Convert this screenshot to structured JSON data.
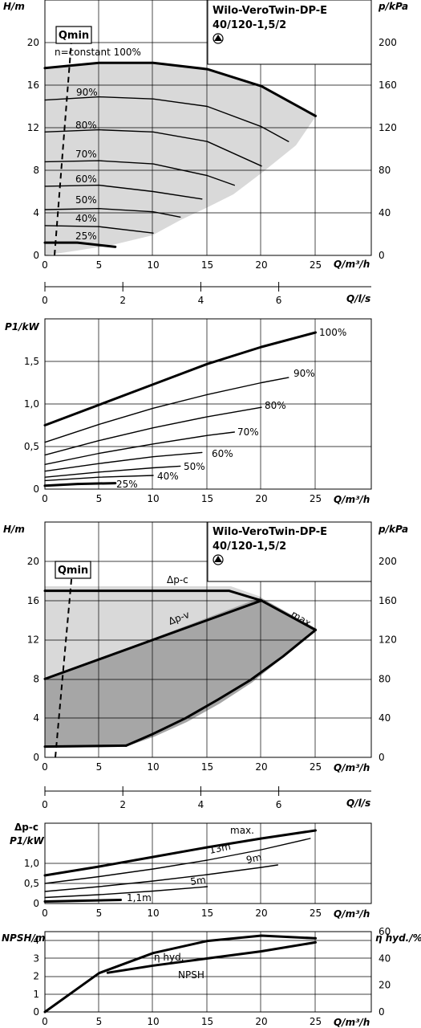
{
  "colors": {
    "ink": "#000000",
    "grid": "#000000",
    "field_light": "#d9d9d9",
    "field_dark": "#a6a6a6",
    "background": "#ffffff"
  },
  "icon": "pump-symbol-icon",
  "chart_data": [
    {
      "id": "c1",
      "type": "line",
      "title": "Wilo-VeroTwin-DP-E",
      "subtitle": "40/120-1,5/2",
      "ylabel": "H/m",
      "ylabel_right": "p/kPa",
      "xlabel": "Q/m³/h",
      "xlim": [
        0,
        30
      ],
      "ylim": [
        0,
        24
      ],
      "xticks": [
        "0",
        "5",
        "10",
        "15",
        "20",
        "25"
      ],
      "yticks": [
        "0",
        "4",
        "8",
        "12",
        "16",
        "20"
      ],
      "yticks_right": [
        "0",
        "40",
        "80",
        "120",
        "160",
        "200"
      ],
      "qmin_label": "Qmin",
      "series": [
        {
          "name": "n=constant 100%",
          "x": [
            0,
            5,
            10,
            15,
            20,
            25
          ],
          "y": [
            17.6,
            18.1,
            18.1,
            17.5,
            15.9,
            13.1
          ],
          "bold": true
        },
        {
          "name": "90%",
          "x": [
            0,
            5,
            10,
            15,
            20,
            22.5
          ],
          "y": [
            14.6,
            14.9,
            14.7,
            14.0,
            12.1,
            10.7
          ]
        },
        {
          "name": "80%",
          "x": [
            0,
            5,
            10,
            15,
            20
          ],
          "y": [
            11.6,
            11.8,
            11.6,
            10.7,
            8.4
          ]
        },
        {
          "name": "70%",
          "x": [
            0,
            5,
            10,
            15,
            17.5
          ],
          "y": [
            8.8,
            8.9,
            8.6,
            7.5,
            6.6
          ]
        },
        {
          "name": "60%",
          "x": [
            0,
            5,
            10,
            14.5
          ],
          "y": [
            6.5,
            6.6,
            6.0,
            5.3
          ]
        },
        {
          "name": "50%",
          "x": [
            0,
            5,
            10,
            12.5
          ],
          "y": [
            4.3,
            4.4,
            4.1,
            3.6
          ]
        },
        {
          "name": "40%",
          "x": [
            0,
            5,
            10
          ],
          "y": [
            2.8,
            2.7,
            2.1
          ]
        },
        {
          "name": "25%",
          "x": [
            0,
            3,
            6.5
          ],
          "y": [
            1.2,
            1.2,
            0.8
          ],
          "bold": true
        }
      ]
    },
    {
      "id": "a1",
      "type": "axis",
      "xlabel": "Q/l/s",
      "xlim": [
        0,
        8.33
      ],
      "xticks": [
        "0",
        "2",
        "4",
        "6"
      ]
    },
    {
      "id": "c2",
      "type": "line",
      "ylabel": "P1/kW",
      "xlabel": "Q/m³/h",
      "xlim": [
        0,
        30
      ],
      "ylim": [
        0,
        2.0
      ],
      "xticks": [
        "0",
        "5",
        "10",
        "15",
        "20",
        "25"
      ],
      "yticks": [
        "0",
        "0,5",
        "1,0",
        "1,5"
      ],
      "series": [
        {
          "name": "100%",
          "x": [
            0,
            5,
            10,
            15,
            20,
            25
          ],
          "y": [
            0.75,
            0.99,
            1.23,
            1.47,
            1.67,
            1.84
          ],
          "bold": true
        },
        {
          "name": "90%",
          "x": [
            0,
            5,
            10,
            15,
            20,
            22.5
          ],
          "y": [
            0.55,
            0.76,
            0.95,
            1.11,
            1.25,
            1.31
          ]
        },
        {
          "name": "80%",
          "x": [
            0,
            5,
            10,
            15,
            20
          ],
          "y": [
            0.4,
            0.57,
            0.72,
            0.85,
            0.96
          ]
        },
        {
          "name": "70%",
          "x": [
            0,
            5,
            10,
            15,
            17.5
          ],
          "y": [
            0.29,
            0.42,
            0.53,
            0.63,
            0.67
          ]
        },
        {
          "name": "60%",
          "x": [
            0,
            5,
            10,
            14.5
          ],
          "y": [
            0.21,
            0.3,
            0.38,
            0.43
          ]
        },
        {
          "name": "50%",
          "x": [
            0,
            5,
            10,
            12.5
          ],
          "y": [
            0.14,
            0.2,
            0.25,
            0.27
          ]
        },
        {
          "name": "40%",
          "x": [
            0,
            5,
            10
          ],
          "y": [
            0.1,
            0.14,
            0.16
          ]
        },
        {
          "name": "25%",
          "x": [
            0,
            3,
            6.5
          ],
          "y": [
            0.04,
            0.06,
            0.07
          ],
          "bold": true
        }
      ]
    },
    {
      "id": "c3",
      "type": "line",
      "title": "Wilo-VeroTwin-DP-E",
      "subtitle": "40/120-1,5/2",
      "ylabel": "H/m",
      "ylabel_right": "p/kPa",
      "xlabel": "Q/m³/h",
      "xlim": [
        0,
        30
      ],
      "ylim": [
        0,
        24
      ],
      "xticks": [
        "0",
        "5",
        "10",
        "15",
        "20",
        "25"
      ],
      "yticks": [
        "0",
        "4",
        "8",
        "12",
        "16",
        "20"
      ],
      "yticks_right": [
        "0",
        "40",
        "80",
        "120",
        "160",
        "200"
      ],
      "qmin_label": "Qmin",
      "series": [
        {
          "name": "Δp-c",
          "x": [
            0,
            17,
            20
          ],
          "y": [
            17,
            17,
            16
          ],
          "bold": true
        },
        {
          "name": "Δp-v",
          "x": [
            0,
            20
          ],
          "y": [
            8,
            16
          ],
          "bold": true
        },
        {
          "name": "max.",
          "x": [
            20,
            25
          ],
          "y": [
            16,
            13
          ],
          "bold": true
        },
        {
          "name": "",
          "x": [
            25,
            22,
            19,
            16,
            13,
            10,
            7.5
          ],
          "y": [
            13,
            10.3,
            7.9,
            5.9,
            4.0,
            2.4,
            1.2
          ],
          "bold": true
        },
        {
          "name": "",
          "x": [
            0,
            7.5
          ],
          "y": [
            1.1,
            1.2
          ],
          "bold": true
        }
      ]
    },
    {
      "id": "a2",
      "type": "axis",
      "xlabel": "Q/l/s",
      "xlim": [
        0,
        8.33
      ],
      "xticks": [
        "0",
        "2",
        "4",
        "6"
      ]
    },
    {
      "id": "c4",
      "type": "line",
      "ylabel": "Δp-c",
      "ylabel2": "P1/kW",
      "xlabel": "Q/m³/h",
      "xlim": [
        0,
        30
      ],
      "ylim": [
        0,
        2.0
      ],
      "xticks": [
        "0",
        "5",
        "10",
        "15",
        "20",
        "25"
      ],
      "yticks": [
        "0",
        "0,5",
        "1,0"
      ],
      "series": [
        {
          "name": "max.",
          "x": [
            0,
            5,
            10,
            15,
            20,
            25
          ],
          "y": [
            0.7,
            0.92,
            1.16,
            1.4,
            1.62,
            1.82
          ],
          "bold": true
        },
        {
          "name": "13m",
          "x": [
            0,
            5,
            10,
            15,
            20,
            24.5
          ],
          "y": [
            0.5,
            0.67,
            0.86,
            1.08,
            1.34,
            1.62
          ]
        },
        {
          "name": "9m",
          "x": [
            0,
            5,
            10,
            15,
            20,
            21.5
          ],
          "y": [
            0.3,
            0.42,
            0.56,
            0.72,
            0.9,
            0.96
          ]
        },
        {
          "name": "5m",
          "x": [
            0,
            5,
            10,
            15
          ],
          "y": [
            0.15,
            0.22,
            0.31,
            0.42
          ]
        },
        {
          "name": "1,1m",
          "x": [
            0,
            3.5,
            7
          ],
          "y": [
            0.05,
            0.07,
            0.09
          ],
          "bold": true
        }
      ]
    },
    {
      "id": "c5",
      "type": "line",
      "ylabel": "NPSH/m",
      "ylabel_right": "η hyd./%",
      "xlabel": "Q/m³/h",
      "xlim": [
        0,
        30
      ],
      "ylim": [
        0,
        4.5
      ],
      "xticks": [
        "0",
        "5",
        "10",
        "15",
        "20",
        "25"
      ],
      "yticks": [
        "0",
        "1",
        "2",
        "3",
        "4"
      ],
      "yticks_right": [
        "0",
        "20",
        "40",
        "60"
      ],
      "series": [
        {
          "name": "η hyd.",
          "axis": "right",
          "x": [
            0,
            5,
            10,
            15,
            20,
            25
          ],
          "y": [
            0,
            29,
            44,
            53,
            57,
            55
          ],
          "bold": true
        },
        {
          "name": "NPSH",
          "axis": "left",
          "x": [
            5.8,
            10,
            15,
            20,
            25
          ],
          "y": [
            2.2,
            2.6,
            3.0,
            3.4,
            3.9
          ],
          "bold": true
        }
      ]
    }
  ]
}
